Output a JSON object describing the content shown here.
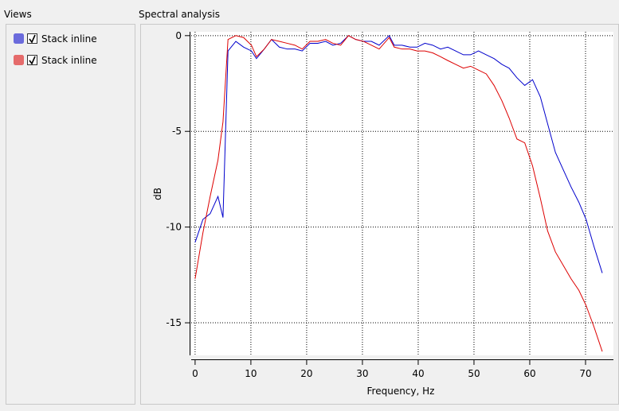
{
  "views_title": "Views",
  "panel_title": "Spectral analysis",
  "chart_data": {
    "type": "line",
    "xlabel": "Frequency, Hz",
    "ylabel": "dB",
    "x": [
      0,
      1.4,
      2.7,
      4.1,
      5,
      5.9,
      7.3,
      8.7,
      10.1,
      11,
      12.4,
      13.7,
      15.1,
      16.5,
      17.9,
      19.2,
      20.6,
      22,
      23.4,
      24.7,
      26.1,
      27.5,
      28.8,
      30.2,
      31.6,
      33,
      34.8,
      35.7,
      37.1,
      38.5,
      39.8,
      41.2,
      42.6,
      44,
      45.3,
      46.7,
      48.1,
      49.4,
      50.8,
      52.2,
      53.6,
      55,
      56.3,
      57.7,
      59.1,
      60.5,
      61.9,
      63.2,
      64.6,
      66,
      67.4,
      68.8,
      70.1,
      71.5,
      73
    ],
    "series": [
      {
        "name": "Stack inline",
        "color": "#0000cc",
        "values": [
          -10.8,
          -9.6,
          -9.3,
          -8.4,
          -9.5,
          -0.8,
          -0.3,
          -0.6,
          -0.8,
          -1.2,
          -0.7,
          -0.2,
          -0.6,
          -0.7,
          -0.7,
          -0.8,
          -0.4,
          -0.4,
          -0.3,
          -0.5,
          -0.4,
          0,
          -0.2,
          -0.3,
          -0.3,
          -0.5,
          0,
          -0.5,
          -0.5,
          -0.6,
          -0.6,
          -0.4,
          -0.5,
          -0.7,
          -0.6,
          -0.8,
          -1,
          -1,
          -0.8,
          -1,
          -1.2,
          -1.5,
          -1.7,
          -2.2,
          -2.6,
          -2.3,
          -3.2,
          -4.6,
          -6.1,
          -7,
          -7.9,
          -8.7,
          -9.6,
          -11,
          -12.4
        ]
      },
      {
        "name": "Stack inline",
        "color": "#dd0000",
        "values": [
          -12.7,
          -10.3,
          -8.4,
          -6.5,
          -4.5,
          -0.2,
          0,
          -0.1,
          -0.5,
          -1.1,
          -0.7,
          -0.2,
          -0.3,
          -0.4,
          -0.5,
          -0.7,
          -0.3,
          -0.3,
          -0.2,
          -0.4,
          -0.5,
          0,
          -0.2,
          -0.3,
          -0.5,
          -0.7,
          -0.1,
          -0.6,
          -0.7,
          -0.7,
          -0.8,
          -0.8,
          -0.9,
          -1.1,
          -1.3,
          -1.5,
          -1.7,
          -1.6,
          -1.8,
          -2,
          -2.6,
          -3.4,
          -4.3,
          -5.4,
          -5.6,
          -6.8,
          -8.5,
          -10.2,
          -11.3,
          -12,
          -12.7,
          -13.3,
          -14.1,
          -15.2,
          -16.5
        ]
      }
    ],
    "xlim": [
      -0.7,
      75
    ],
    "ylim": [
      -16.7,
      0.2
    ],
    "xticks": [
      0,
      10,
      20,
      30,
      40,
      50,
      60,
      70
    ],
    "yticks": [
      0,
      -5,
      -10,
      -15
    ],
    "grid": true
  }
}
